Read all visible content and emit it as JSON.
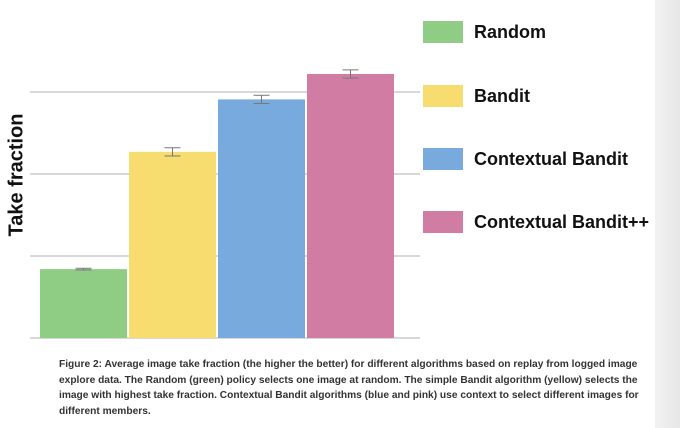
{
  "chart_data": {
    "type": "bar",
    "categories": [
      "Random",
      "Bandit",
      "Contextual Bandit",
      "Contextual Bandit++"
    ],
    "values": [
      0.84,
      2.27,
      2.91,
      3.22
    ],
    "error": [
      0.01,
      0.05,
      0.05,
      0.05
    ],
    "colors": [
      "#8fcc84",
      "#f7dc6f",
      "#78aade",
      "#d07ca3"
    ],
    "title": "",
    "xlabel": "",
    "ylabel": "Take fraction",
    "ylim": [
      0,
      3.3
    ],
    "gridlines": [
      1,
      2,
      3
    ],
    "grid": true,
    "legend": {
      "placement": "right",
      "entries": [
        "Random",
        "Bandit",
        "Contextual Bandit",
        "Contextual Bandit++"
      ]
    }
  },
  "caption": "Figure 2: Average image take fraction (the higher the better) for different algorithms based on replay from logged image explore data. The Random (green) policy selects one image at random. The simple Bandit algorithm (yellow) selects the image with highest take fraction. Contextual Bandit algorithms (blue and pink) use context to select different images for different members."
}
